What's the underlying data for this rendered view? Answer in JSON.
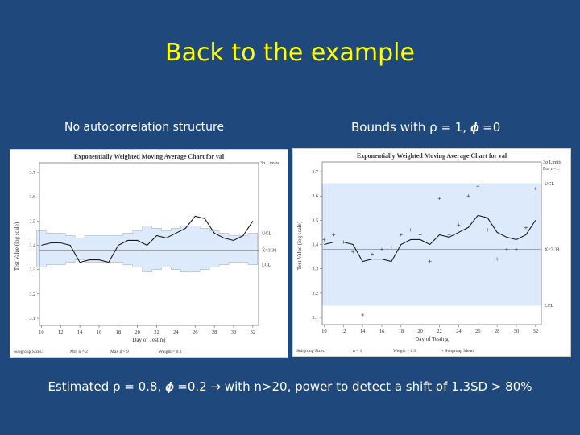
{
  "slide": {
    "title": "Back to the example",
    "left_label": "No autocorrelation structure",
    "right_label": "Bounds with ρ = 1, 𝝓 =0",
    "bottom_text": "Estimated ρ = 0.8, 𝝓 =0.2 → with n>20, power to detect a shift of 1.3SD > 80%"
  },
  "colors": {
    "background": "#1f497d",
    "title": "#ffff00",
    "band": "#dceafb",
    "line": "#1a1a1a",
    "center": "#888888"
  },
  "chart_data": [
    {
      "type": "line",
      "title": "Exponentially Weighted Moving Average Chart for val",
      "xlabel": "Day of Testing",
      "ylabel": "Test Value (log scale)",
      "x_ticks": [
        10,
        12,
        14,
        16,
        18,
        20,
        22,
        24,
        26,
        28,
        30,
        32
      ],
      "y_ticks": [
        3.1,
        3.2,
        3.3,
        3.4,
        3.5,
        3.6,
        3.7
      ],
      "xlim": [
        9.8,
        32.6
      ],
      "ylim": [
        3.07,
        3.74
      ],
      "limits_label": "3σ Limits",
      "ucl_label": "UCL",
      "lcl_label": "LCL",
      "center_label": "X̄=3.38",
      "center": 3.38,
      "ewma": {
        "x": [
          10,
          11,
          12,
          13,
          14,
          15,
          16,
          17,
          18,
          19,
          20,
          21,
          22,
          23,
          24,
          25,
          26,
          27,
          28,
          29,
          30,
          31,
          32
        ],
        "y": [
          3.4,
          3.41,
          3.41,
          3.4,
          3.33,
          3.34,
          3.34,
          3.33,
          3.4,
          3.42,
          3.42,
          3.4,
          3.44,
          3.43,
          3.45,
          3.47,
          3.52,
          3.51,
          3.45,
          3.43,
          3.42,
          3.44,
          3.5
        ]
      },
      "ucl": {
        "x": [
          10,
          11,
          12,
          13,
          14,
          15,
          16,
          17,
          18,
          19,
          20,
          21,
          22,
          23,
          24,
          25,
          26,
          27,
          28,
          29,
          30,
          31,
          32
        ],
        "y": [
          3.46,
          3.45,
          3.45,
          3.44,
          3.43,
          3.44,
          3.44,
          3.44,
          3.44,
          3.45,
          3.46,
          3.48,
          3.47,
          3.46,
          3.47,
          3.48,
          3.48,
          3.47,
          3.46,
          3.45,
          3.44,
          3.44,
          3.45
        ]
      },
      "lcl": {
        "x": [
          10,
          11,
          12,
          13,
          14,
          15,
          16,
          17,
          18,
          19,
          20,
          21,
          22,
          23,
          24,
          25,
          26,
          27,
          28,
          29,
          30,
          31,
          32
        ],
        "y": [
          3.31,
          3.32,
          3.32,
          3.33,
          3.34,
          3.33,
          3.33,
          3.33,
          3.33,
          3.32,
          3.31,
          3.29,
          3.3,
          3.31,
          3.3,
          3.29,
          3.29,
          3.3,
          3.31,
          3.32,
          3.33,
          3.33,
          3.32
        ]
      },
      "footer": {
        "left": "Subgroup Sizes:",
        "mid1": "Min n = 2",
        "mid2": "Max n = 9",
        "right": "Weight = 0.3"
      }
    },
    {
      "type": "line",
      "title": "Exponentially Weighted Moving Average Chart for val",
      "xlabel": "Day of Testing",
      "ylabel": "Test Value (log scale)",
      "x_ticks": [
        10,
        12,
        14,
        16,
        18,
        20,
        22,
        24,
        26,
        28,
        30,
        32
      ],
      "y_ticks": [
        3.1,
        3.2,
        3.3,
        3.4,
        3.5,
        3.6,
        3.7
      ],
      "xlim": [
        9.8,
        32.6
      ],
      "ylim": [
        3.07,
        3.74
      ],
      "limits_label": "3σ Limits",
      "limits_sub": "For n=1:",
      "ucl_label": "UCL",
      "lcl_label": "LCL",
      "center_label": "X̄=3.38",
      "center": 3.38,
      "ucl": 3.65,
      "lcl": 3.15,
      "ewma": {
        "x": [
          10,
          11,
          12,
          13,
          14,
          15,
          16,
          17,
          18,
          19,
          20,
          21,
          22,
          23,
          24,
          25,
          26,
          27,
          28,
          29,
          30,
          31,
          32
        ],
        "y": [
          3.4,
          3.41,
          3.41,
          3.4,
          3.33,
          3.34,
          3.34,
          3.33,
          3.4,
          3.42,
          3.42,
          3.4,
          3.44,
          3.43,
          3.45,
          3.47,
          3.52,
          3.51,
          3.45,
          3.43,
          3.42,
          3.44,
          3.5
        ]
      },
      "means": {
        "x": [
          10,
          11,
          12,
          13,
          14,
          15,
          16,
          17,
          18,
          19,
          20,
          21,
          22,
          23,
          24,
          25,
          26,
          27,
          28,
          29,
          30,
          31,
          32
        ],
        "y": [
          3.42,
          3.44,
          3.41,
          3.37,
          3.11,
          3.36,
          3.38,
          3.39,
          3.44,
          3.46,
          3.44,
          3.33,
          3.59,
          3.44,
          3.48,
          3.6,
          3.64,
          3.46,
          3.34,
          3.38,
          3.38,
          3.47,
          3.63
        ]
      },
      "footer": {
        "left": "Subgroup Sizes:",
        "mid1": "n = 1",
        "mid2": "Weight = 0.3",
        "right": "+ Subgroup Mean"
      }
    }
  ]
}
